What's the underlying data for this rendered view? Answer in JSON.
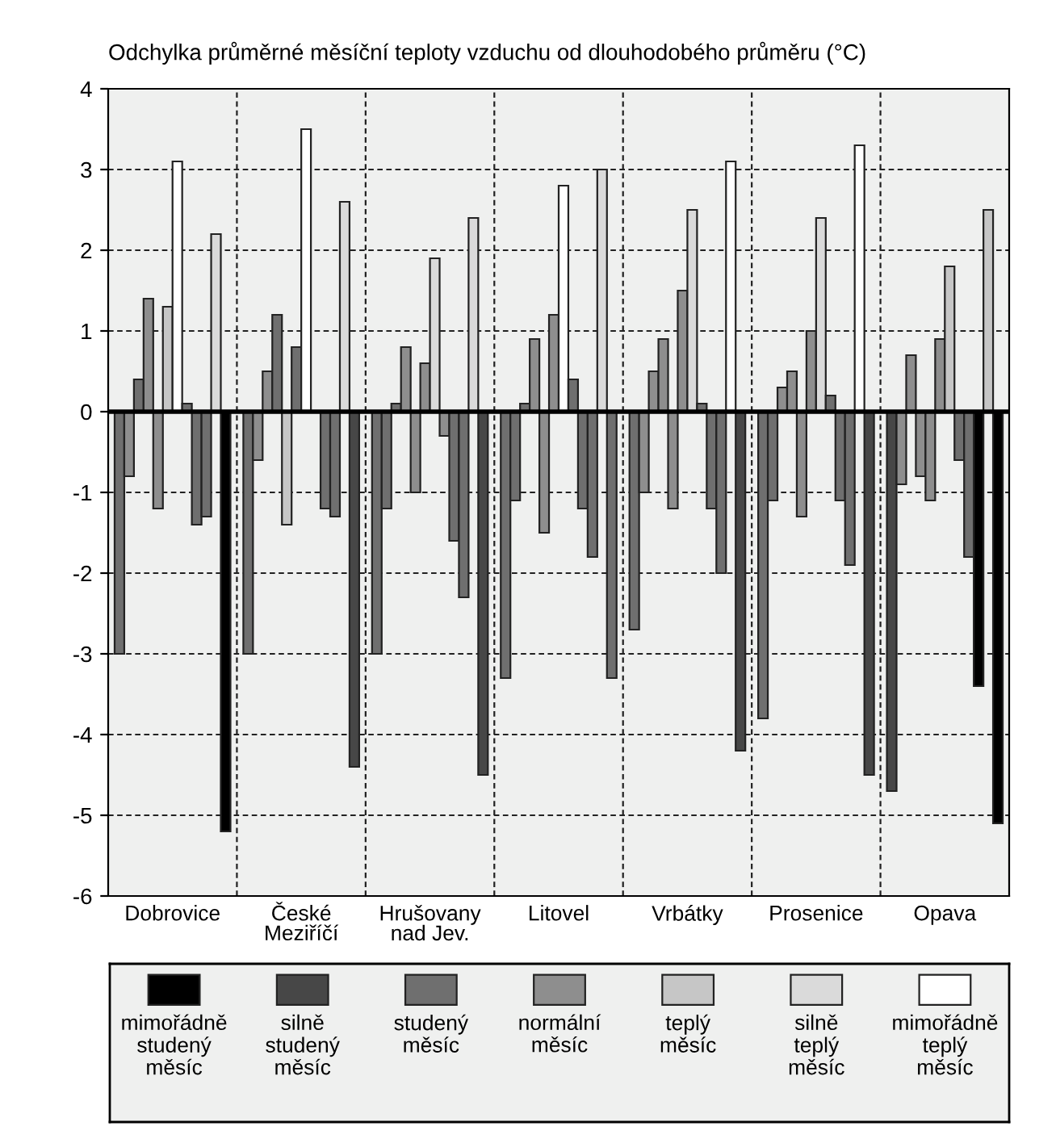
{
  "chart_data": {
    "type": "bar",
    "ylabel": "Odchylka průměrné měsíční teploty vzduchu od dlouhodobého průměru (°C)",
    "categories": [
      "Dobrovice",
      "České\nMeziříčí",
      "Hrušovany\nnad Jev.",
      "Litovel",
      "Vrbátky",
      "Prosenice",
      "Opava"
    ],
    "series": [
      {
        "values": [
          -3.0,
          -3.0,
          -3.0,
          -3.3,
          -2.7,
          -3.8,
          -4.7
        ],
        "colors": [
          "#6f6f6f",
          "#6f6f6f",
          "#6f6f6f",
          "#6f6f6f",
          "#6f6f6f",
          "#6f6f6f",
          "#474747"
        ]
      },
      {
        "values": [
          -0.8,
          -0.6,
          -1.2,
          -1.1,
          -1.0,
          -1.1,
          -0.9
        ],
        "colors": [
          "#8e8e8e",
          "#8e8e8e",
          "#6f6f6f",
          "#6f6f6f",
          "#8e8e8e",
          "#6f6f6f",
          "#8e8e8e"
        ]
      },
      {
        "values": [
          0.4,
          0.5,
          0.1,
          0.1,
          0.5,
          0.3,
          0.7
        ],
        "colors": [
          "#6f6f6f",
          "#8e8e8e",
          "#6f6f6f",
          "#6f6f6f",
          "#8e8e8e",
          "#8e8e8e",
          "#8e8e8e"
        ]
      },
      {
        "values": [
          1.4,
          1.2,
          0.8,
          0.9,
          0.9,
          0.5,
          -0.8
        ],
        "colors": [
          "#8e8e8e",
          "#6f6f6f",
          "#8e8e8e",
          "#8e8e8e",
          "#8e8e8e",
          "#8e8e8e",
          "#8e8e8e"
        ]
      },
      {
        "values": [
          -1.2,
          -1.4,
          -1.0,
          -1.5,
          -1.2,
          -1.3,
          -1.1
        ],
        "colors": [
          "#8e8e8e",
          "#c6c6c6",
          "#8e8e8e",
          "#8e8e8e",
          "#8e8e8e",
          "#8e8e8e",
          "#8e8e8e"
        ]
      },
      {
        "values": [
          1.3,
          0.8,
          0.6,
          1.2,
          1.5,
          1.0,
          0.9
        ],
        "colors": [
          "#c6c6c6",
          "#6f6f6f",
          "#8e8e8e",
          "#8e8e8e",
          "#8e8e8e",
          "#8e8e8e",
          "#8e8e8e"
        ]
      },
      {
        "values": [
          3.1,
          3.5,
          1.9,
          2.8,
          2.5,
          2.4,
          1.8
        ],
        "colors": [
          "#ffffff",
          "#ffffff",
          "#dadada",
          "#ffffff",
          "#dadada",
          "#dadada",
          "#c6c6c6"
        ]
      },
      {
        "values": [
          0.1,
          null,
          -0.3,
          0.4,
          0.1,
          0.2,
          -0.6
        ],
        "colors": [
          "#6f6f6f",
          "#8e8e8e",
          "#8e8e8e",
          "#6f6f6f",
          "#6f6f6f",
          "#6f6f6f",
          "#6f6f6f"
        ]
      },
      {
        "values": [
          -1.4,
          -1.2,
          -1.6,
          -1.2,
          -1.2,
          -1.1,
          -1.8
        ],
        "colors": [
          "#6f6f6f",
          "#6f6f6f",
          "#6f6f6f",
          "#6f6f6f",
          "#6f6f6f",
          "#6f6f6f",
          "#6f6f6f"
        ]
      },
      {
        "values": [
          -1.3,
          -1.3,
          -2.3,
          -1.8,
          -2.0,
          -1.9,
          -3.4
        ],
        "colors": [
          "#6f6f6f",
          "#6f6f6f",
          "#6f6f6f",
          "#6f6f6f",
          "#6f6f6f",
          "#6f6f6f",
          "#000000"
        ]
      },
      {
        "values": [
          2.2,
          2.6,
          2.4,
          3.0,
          3.1,
          3.3,
          2.5
        ],
        "colors": [
          "#dadada",
          "#dadada",
          "#dadada",
          "#dadada",
          "#ffffff",
          "#ffffff",
          "#c6c6c6"
        ]
      },
      {
        "values": [
          -5.2,
          -4.4,
          -4.5,
          -3.3,
          -4.2,
          -4.5,
          -5.1
        ],
        "colors": [
          "#000000",
          "#474747",
          "#474747",
          "#6f6f6f",
          "#474747",
          "#474747",
          "#000000"
        ]
      },
      {
        "name": "mimořádně\nstudený\nměsíc",
        "color": "#000000",
        "values": [
          null,
          null,
          null,
          null,
          null,
          null,
          null
        ]
      },
      {
        "name": "silně\nstudený\nměsíc",
        "color": "#474747",
        "values": [
          null,
          null,
          null,
          null,
          null,
          null,
          null
        ]
      },
      {
        "name": "studený\nměsíc",
        "color": "#6f6f6f",
        "values": [
          null,
          null,
          null,
          null,
          null,
          null,
          null
        ]
      },
      {
        "name": "normální\nměsíc",
        "color": "#8e8e8e",
        "values": [
          null,
          null,
          null,
          null,
          null,
          null,
          null
        ]
      },
      {
        "name": "teplý\nměsíc",
        "color": "#c6c6c6",
        "values": [
          null,
          null,
          null,
          null,
          null,
          null,
          null
        ]
      },
      {
        "name": "silně\nteplý\nměsíc",
        "color": "#dadada",
        "values": [
          null,
          null,
          null,
          null,
          null,
          null,
          null
        ]
      },
      {
        "name": "mimořádně\nteplý\nměsíc",
        "color": "#ffffff",
        "values": [
          null,
          null,
          null,
          null,
          null,
          null,
          null
        ]
      }
    ],
    "ylim": [
      -6,
      4
    ],
    "yticks": [
      -6,
      -5,
      -4,
      -3,
      -2,
      -1,
      0,
      1,
      2,
      3,
      4
    ],
    "ref_lines": [
      {
        "axis": "y",
        "value": 0,
        "color": "#000000",
        "line_style": "solid"
      }
    ],
    "grid": true,
    "legend": "bottom"
  }
}
